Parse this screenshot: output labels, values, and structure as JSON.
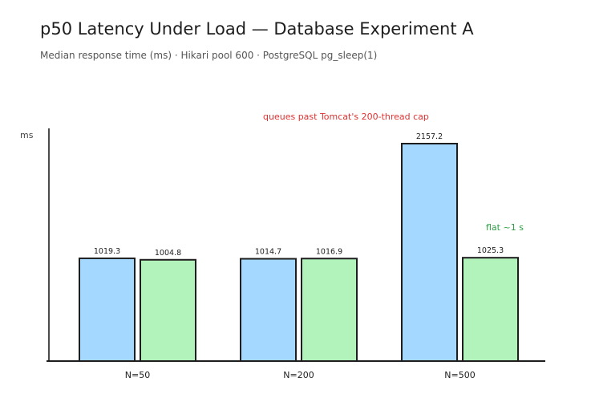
{
  "header": {
    "title": "p50 Latency Under Load — Database Experiment A",
    "subtitle": "Median response time (ms) · Hikari pool 600 · PostgreSQL pg_sleep(1)"
  },
  "chart_data": {
    "type": "bar",
    "title": "p50 Latency Under Load — Database Experiment A",
    "subtitle": "Median response time (ms) · Hikari pool 600 · PostgreSQL pg_sleep(1)",
    "ylabel": "ms",
    "xlabel": "",
    "categories": [
      "N=50",
      "N=200",
      "N=500"
    ],
    "series": [
      {
        "values": [
          1019.3,
          1014.7,
          2157.2
        ],
        "color": "#a5d8ff"
      },
      {
        "values": [
          1004.8,
          1016.9,
          1025.3
        ],
        "color": "#b2f2bb"
      }
    ],
    "ylim": [
      0,
      2300
    ],
    "grid": false,
    "annotations": [
      {
        "text": "queues past Tomcat's 200-thread cap",
        "color": "#e03131"
      },
      {
        "text": "flat ~1 s",
        "color": "#2f9e44"
      }
    ],
    "stroke_color": "#1e1e1e"
  }
}
